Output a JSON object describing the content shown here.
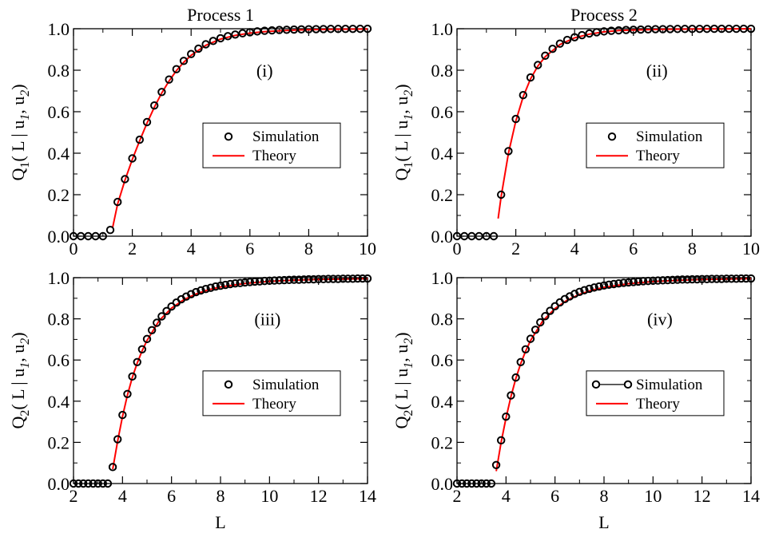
{
  "figure": {
    "xlabel": "L"
  },
  "chart_data": [
    {
      "type": "scatter",
      "title": "Process 1",
      "tag": "(i)",
      "ylabel": {
        "main": "Q",
        "sub": "1",
        "rest": "( L | u",
        "s1": "1",
        "mid": ", u",
        "s2": "2",
        "end": ")"
      },
      "xlim": [
        0,
        10
      ],
      "ylim": [
        0,
        1
      ],
      "xticks": [
        0,
        2,
        4,
        6,
        8,
        10
      ],
      "yticks": [
        "0.0",
        "0.2",
        "0.4",
        "0.6",
        "0.8",
        "1.0"
      ],
      "legend": {
        "position": "center-right",
        "simulation": "Simulation",
        "theory": "Theory",
        "sim_line": false
      },
      "simulation": {
        "x": [
          0,
          0.25,
          0.5,
          0.75,
          1.0,
          1.25,
          1.5,
          1.75,
          2.0,
          2.25,
          2.5,
          2.75,
          3.0,
          3.25,
          3.5,
          3.75,
          4.0,
          4.25,
          4.5,
          4.75,
          5.0,
          5.25,
          5.5,
          5.75,
          6.0,
          6.25,
          6.5,
          6.75,
          7.0,
          7.25,
          7.5,
          7.75,
          8.0,
          8.25,
          8.5,
          8.75,
          9.0,
          9.25,
          9.5,
          9.75,
          10.0
        ],
        "y": [
          0,
          0,
          0,
          0,
          0,
          0.03,
          0.165,
          0.275,
          0.375,
          0.465,
          0.55,
          0.63,
          0.695,
          0.755,
          0.805,
          0.845,
          0.878,
          0.904,
          0.925,
          0.941,
          0.954,
          0.964,
          0.972,
          0.978,
          0.983,
          0.987,
          0.99,
          0.992,
          0.994,
          0.995,
          0.996,
          0.997,
          0.9975,
          0.998,
          0.9985,
          0.999,
          0.999,
          0.9992,
          0.9994,
          0.9995,
          0.9996
        ]
      },
      "theory": {
        "x": [
          1.33,
          1.5,
          1.75,
          2.0,
          2.25,
          2.5,
          2.75,
          3.0,
          3.25,
          3.5,
          3.75,
          4.0,
          4.5,
          5.0,
          5.5,
          6.0,
          6.5,
          7.0,
          7.5,
          8.0,
          8.5,
          9.0,
          9.5,
          10.0
        ],
        "y": [
          0.04,
          0.155,
          0.27,
          0.37,
          0.46,
          0.545,
          0.622,
          0.69,
          0.748,
          0.798,
          0.838,
          0.872,
          0.92,
          0.95,
          0.968,
          0.979,
          0.986,
          0.99,
          0.993,
          0.995,
          0.9965,
          0.9975,
          0.998,
          0.9985
        ]
      }
    },
    {
      "type": "scatter",
      "title": "Process 2",
      "tag": "(ii)",
      "ylabel": {
        "main": "Q",
        "sub": "1",
        "rest": "( L | u",
        "s1": "1",
        "mid": ", u",
        "s2": "2",
        "end": ")"
      },
      "xlim": [
        0,
        10
      ],
      "ylim": [
        0,
        1
      ],
      "xticks": [
        0,
        2,
        4,
        6,
        8,
        10
      ],
      "yticks": [
        "0.0",
        "0.2",
        "0.4",
        "0.6",
        "0.8",
        "1.0"
      ],
      "legend": {
        "position": "center-right",
        "simulation": "Simulation",
        "theory": "Theory",
        "sim_line": false
      },
      "simulation": {
        "x": [
          0,
          0.25,
          0.5,
          0.75,
          1.0,
          1.25,
          1.5,
          1.75,
          2.0,
          2.25,
          2.5,
          2.75,
          3.0,
          3.25,
          3.5,
          3.75,
          4.0,
          4.25,
          4.5,
          4.75,
          5.0,
          5.25,
          5.5,
          5.75,
          6.0,
          6.25,
          6.5,
          6.75,
          7.0,
          7.25,
          7.5,
          7.75,
          8.0,
          8.25,
          8.5,
          8.75,
          9.0,
          9.25,
          9.5,
          9.75,
          10.0
        ],
        "y": [
          0,
          0,
          0,
          0,
          0,
          0,
          0.2,
          0.41,
          0.565,
          0.68,
          0.765,
          0.825,
          0.87,
          0.903,
          0.928,
          0.946,
          0.959,
          0.969,
          0.977,
          0.983,
          0.987,
          0.99,
          0.992,
          0.994,
          0.995,
          0.996,
          0.997,
          0.998,
          0.998,
          0.9985,
          0.999,
          0.999,
          0.9992,
          0.9994,
          0.9995,
          0.9996,
          0.9997,
          0.9997,
          0.9998,
          0.9998,
          0.9999
        ]
      },
      "theory": {
        "x": [
          1.4,
          1.5,
          1.75,
          2.0,
          2.25,
          2.5,
          2.75,
          3.0,
          3.5,
          4.0,
          4.5,
          5.0,
          5.5,
          6.0,
          7.0,
          8.0,
          9.0,
          10.0
        ],
        "y": [
          0.085,
          0.19,
          0.4,
          0.555,
          0.672,
          0.758,
          0.82,
          0.865,
          0.924,
          0.956,
          0.974,
          0.985,
          0.991,
          0.994,
          0.997,
          0.9985,
          0.9992,
          0.9996
        ]
      }
    },
    {
      "type": "scatter",
      "title": "",
      "tag": "(iii)",
      "ylabel": {
        "main": "Q",
        "sub": "2",
        "rest": "( L | u",
        "s1": "1",
        "mid": ", u",
        "s2": "2",
        "end": ")"
      },
      "xlim": [
        2,
        14
      ],
      "ylim": [
        0,
        1
      ],
      "xticks": [
        2,
        4,
        6,
        8,
        10,
        12,
        14
      ],
      "yticks": [
        "0.0",
        "0.2",
        "0.4",
        "0.6",
        "0.8",
        "1.0"
      ],
      "legend": {
        "position": "center-right",
        "simulation": "Simulation",
        "theory": "Theory",
        "sim_line": false
      },
      "simulation": {
        "x": [
          2.0,
          2.2,
          2.4,
          2.6,
          2.8,
          3.0,
          3.2,
          3.4,
          3.6,
          3.8,
          4.0,
          4.2,
          4.4,
          4.6,
          4.8,
          5.0,
          5.2,
          5.4,
          5.6,
          5.8,
          6.0,
          6.2,
          6.4,
          6.6,
          6.8,
          7.0,
          7.2,
          7.4,
          7.6,
          7.8,
          8.0,
          8.2,
          8.4,
          8.6,
          8.8,
          9.0,
          9.2,
          9.4,
          9.6,
          9.8,
          10.0,
          10.2,
          10.4,
          10.6,
          10.8,
          11.0,
          11.2,
          11.4,
          11.6,
          11.8,
          12.0,
          12.2,
          12.4,
          12.6,
          12.8,
          13.0,
          13.2,
          13.4,
          13.6,
          13.8,
          14.0
        ],
        "y": [
          0,
          0,
          0,
          0,
          0,
          0,
          0,
          0,
          0.08,
          0.215,
          0.333,
          0.435,
          0.52,
          0.59,
          0.652,
          0.702,
          0.745,
          0.781,
          0.812,
          0.838,
          0.86,
          0.879,
          0.895,
          0.908,
          0.92,
          0.93,
          0.938,
          0.945,
          0.951,
          0.957,
          0.961,
          0.965,
          0.969,
          0.972,
          0.974,
          0.977,
          0.979,
          0.981,
          0.982,
          0.984,
          0.985,
          0.986,
          0.987,
          0.988,
          0.989,
          0.99,
          0.99,
          0.991,
          0.992,
          0.992,
          0.993,
          0.993,
          0.994,
          0.994,
          0.994,
          0.995,
          0.995,
          0.995,
          0.996,
          0.996,
          0.996
        ]
      },
      "theory": {
        "x": [
          3.6,
          3.8,
          4.0,
          4.2,
          4.4,
          4.6,
          4.8,
          5.0,
          5.5,
          6.0,
          6.5,
          7.0,
          7.5,
          8.0,
          9.0,
          10.0,
          11.0,
          12.0,
          13.0,
          14.0
        ],
        "y": [
          0.07,
          0.205,
          0.325,
          0.43,
          0.515,
          0.585,
          0.645,
          0.695,
          0.792,
          0.852,
          0.893,
          0.921,
          0.941,
          0.955,
          0.972,
          0.982,
          0.988,
          0.991,
          0.993,
          0.995
        ]
      }
    },
    {
      "type": "scatter",
      "title": "",
      "tag": "(iv)",
      "ylabel": {
        "main": "Q",
        "sub": "2",
        "rest": "( L | u",
        "s1": "1",
        "mid": ", u",
        "s2": "2",
        "end": ")"
      },
      "xlim": [
        2,
        14
      ],
      "ylim": [
        0,
        1
      ],
      "xticks": [
        2,
        4,
        6,
        8,
        10,
        12,
        14
      ],
      "yticks": [
        "0.0",
        "0.2",
        "0.4",
        "0.6",
        "0.8",
        "1.0"
      ],
      "legend": {
        "position": "center-right",
        "simulation": "Simulation",
        "theory": "Theory",
        "sim_line": true
      },
      "simulation": {
        "x": [
          2.0,
          2.2,
          2.4,
          2.6,
          2.8,
          3.0,
          3.2,
          3.4,
          3.6,
          3.8,
          4.0,
          4.2,
          4.4,
          4.6,
          4.8,
          5.0,
          5.2,
          5.4,
          5.6,
          5.8,
          6.0,
          6.2,
          6.4,
          6.6,
          6.8,
          7.0,
          7.2,
          7.4,
          7.6,
          7.8,
          8.0,
          8.2,
          8.4,
          8.6,
          8.8,
          9.0,
          9.2,
          9.4,
          9.6,
          9.8,
          10.0,
          10.2,
          10.4,
          10.6,
          10.8,
          11.0,
          11.2,
          11.4,
          11.6,
          11.8,
          12.0,
          12.2,
          12.4,
          12.6,
          12.8,
          13.0,
          13.2,
          13.4,
          13.6,
          13.8,
          14.0
        ],
        "y": [
          0,
          0,
          0,
          0,
          0,
          0,
          0,
          0,
          0.09,
          0.21,
          0.325,
          0.428,
          0.515,
          0.59,
          0.652,
          0.703,
          0.747,
          0.783,
          0.813,
          0.839,
          0.861,
          0.88,
          0.896,
          0.909,
          0.921,
          0.931,
          0.939,
          0.946,
          0.952,
          0.957,
          0.962,
          0.966,
          0.969,
          0.972,
          0.975,
          0.977,
          0.979,
          0.981,
          0.983,
          0.984,
          0.985,
          0.986,
          0.987,
          0.988,
          0.989,
          0.99,
          0.991,
          0.991,
          0.992,
          0.992,
          0.993,
          0.993,
          0.994,
          0.994,
          0.994,
          0.995,
          0.995,
          0.995,
          0.996,
          0.996,
          0.996
        ]
      },
      "theory": {
        "x": [
          3.6,
          3.8,
          4.0,
          4.2,
          4.4,
          4.6,
          4.8,
          5.0,
          5.5,
          6.0,
          6.5,
          7.0,
          7.5,
          8.0,
          9.0,
          10.0,
          11.0,
          12.0,
          13.0,
          14.0
        ],
        "y": [
          0.06,
          0.2,
          0.318,
          0.422,
          0.51,
          0.582,
          0.643,
          0.694,
          0.79,
          0.85,
          0.891,
          0.919,
          0.939,
          0.953,
          0.971,
          0.981,
          0.987,
          0.991,
          0.993,
          0.995
        ]
      }
    }
  ],
  "colors": {
    "axis": "#000000",
    "simulation": "#000000",
    "theory": "#ff0000"
  }
}
